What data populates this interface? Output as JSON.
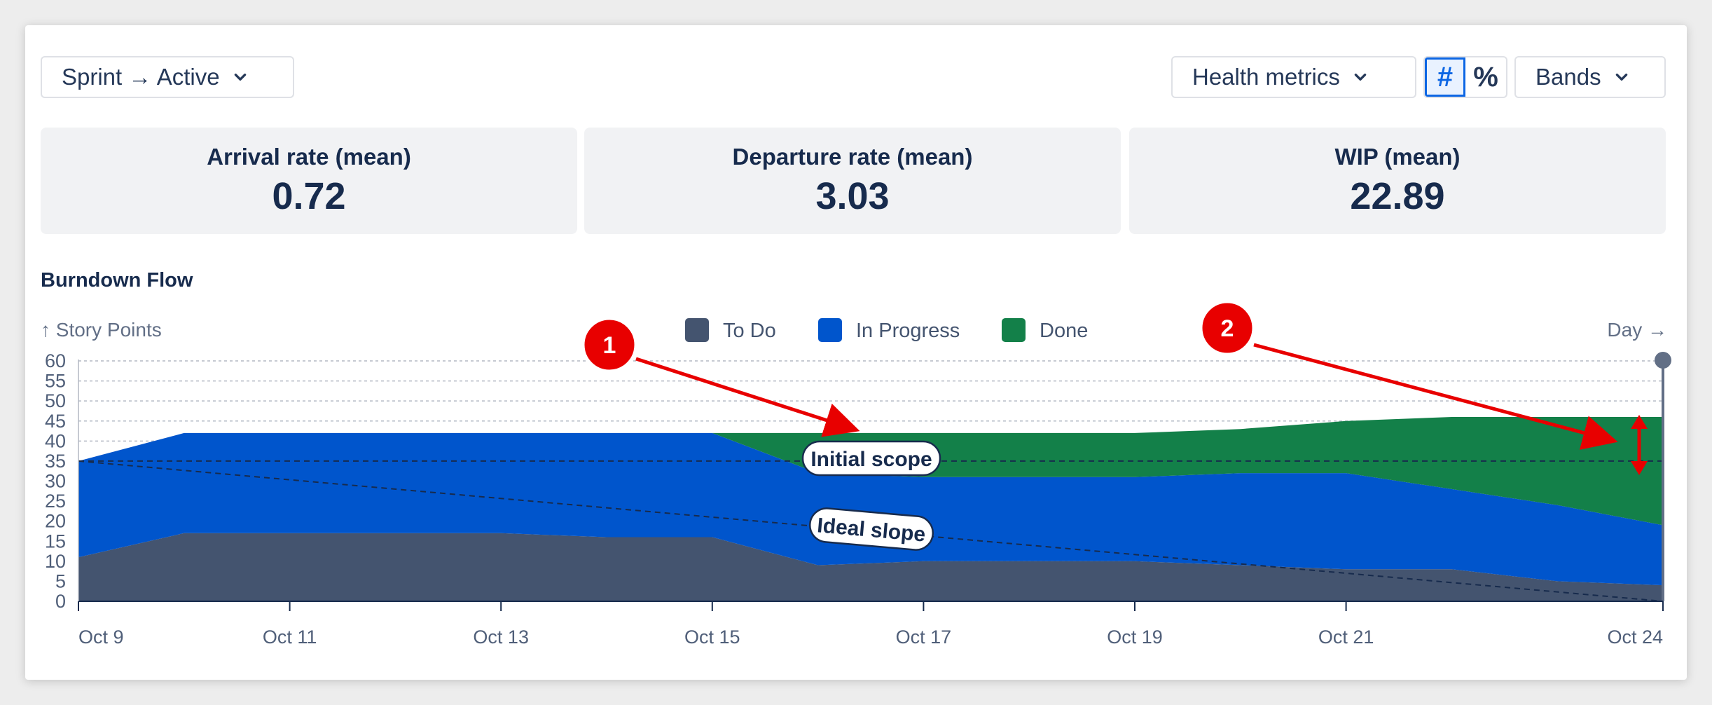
{
  "toolbar": {
    "sprint_filter": "Sprint → Active",
    "health_metrics": "Health metrics",
    "count_toggle": "#",
    "percent_toggle": "%",
    "bands": "Bands"
  },
  "metrics": [
    {
      "label": "Arrival rate (mean)",
      "value": "0.72"
    },
    {
      "label": "Departure rate (mean)",
      "value": "3.03"
    },
    {
      "label": "WIP (mean)",
      "value": "22.89"
    }
  ],
  "section_title": "Burndown Flow",
  "colors": {
    "todo": "#44546f",
    "in_progress": "#0055cc",
    "done": "#138049",
    "annotation": "#e80000"
  },
  "annotations": {
    "marker_1": "1",
    "marker_2": "2",
    "initial_scope_label": "Initial scope",
    "ideal_slope_label": "Ideal slope"
  },
  "chart_data": {
    "type": "area",
    "stacked": true,
    "title": "Burndown Flow",
    "ylabel": "↑ Story Points",
    "xlabel": "Day →",
    "ylim": [
      0,
      60
    ],
    "yticks": [
      0,
      5,
      10,
      15,
      20,
      25,
      30,
      35,
      40,
      45,
      50,
      55,
      60
    ],
    "x": [
      "Oct 9",
      "Oct 10",
      "Oct 11",
      "Oct 12",
      "Oct 13",
      "Oct 14",
      "Oct 15",
      "Oct 16",
      "Oct 17",
      "Oct 18",
      "Oct 19",
      "Oct 20",
      "Oct 21",
      "Oct 22",
      "Oct 23",
      "Oct 24"
    ],
    "xtick_labels": [
      "Oct 9",
      "Oct 11",
      "Oct 13",
      "Oct 15",
      "Oct 17",
      "Oct 19",
      "Oct 21",
      "Oct 24"
    ],
    "legend_position": "top",
    "grid": true,
    "series": [
      {
        "name": "To Do",
        "color": "#44546f",
        "values": [
          11,
          17,
          17,
          17,
          17,
          16,
          16,
          9,
          10,
          10,
          10,
          9,
          8,
          8,
          5,
          4
        ]
      },
      {
        "name": "In Progress",
        "color": "#0055cc",
        "values": [
          24,
          25,
          25,
          25,
          25,
          26,
          26,
          23,
          21,
          21,
          21,
          23,
          24,
          20,
          19,
          15
        ]
      },
      {
        "name": "Done",
        "color": "#138049",
        "values": [
          0,
          0,
          0,
          0,
          0,
          0,
          0,
          10,
          11,
          11,
          11,
          11,
          13,
          18,
          22,
          27
        ]
      }
    ],
    "reference_lines": {
      "initial_scope": 35,
      "ideal_slope": [
        35,
        0
      ]
    }
  }
}
